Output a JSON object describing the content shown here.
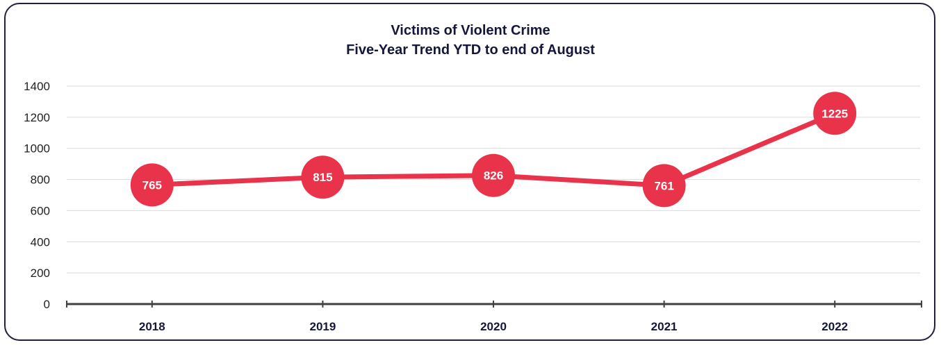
{
  "chart_data": {
    "type": "line",
    "title": "Victims of Violent Crime",
    "subtitle": "Five-Year Trend YTD to end of August",
    "categories": [
      "2018",
      "2019",
      "2020",
      "2021",
      "2022"
    ],
    "series": [
      {
        "values": [
          765,
          815,
          826,
          761,
          1225
        ]
      }
    ],
    "data_labels": [
      "765",
      "815",
      "826",
      "761",
      "1225"
    ],
    "y_ticks": [
      "0",
      "200",
      "400",
      "600",
      "800",
      "1000",
      "1200",
      "1400"
    ],
    "ylim": [
      0,
      1400
    ],
    "grid": true,
    "legend": "none",
    "colors": {
      "line": "#e8334a",
      "axis": "#404040",
      "grid": "#d9d9d9",
      "text": "#14173a"
    }
  }
}
